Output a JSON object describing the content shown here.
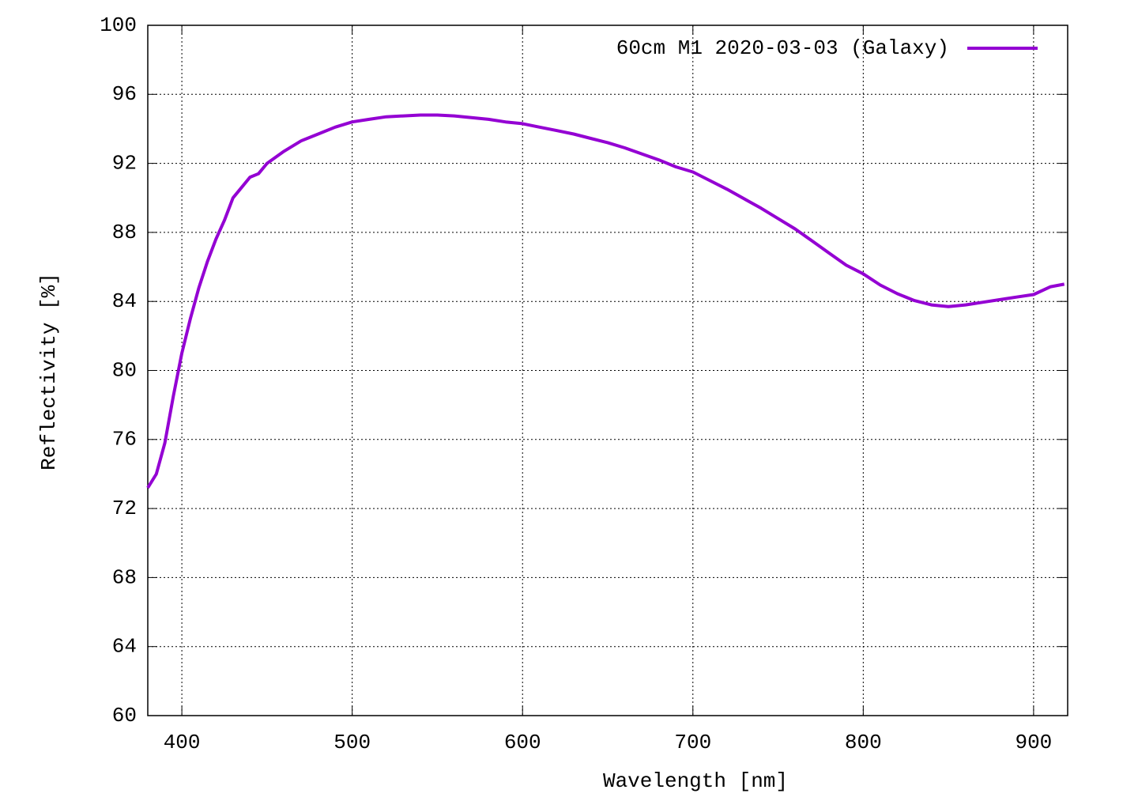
{
  "chart_data": {
    "type": "line",
    "x_label": "Wavelength [nm]",
    "y_label": "Reflectivity [%]",
    "xlim": [
      380,
      920
    ],
    "ylim": [
      60,
      100
    ],
    "xticks": [
      400,
      500,
      600,
      700,
      800,
      900
    ],
    "yticks": [
      60,
      64,
      68,
      72,
      76,
      80,
      84,
      88,
      92,
      96,
      100
    ],
    "grid": true,
    "legend": "top-right",
    "x": [
      380,
      385,
      390,
      395,
      400,
      405,
      410,
      415,
      420,
      425,
      430,
      435,
      440,
      445,
      450,
      460,
      470,
      480,
      490,
      500,
      510,
      520,
      530,
      540,
      550,
      560,
      570,
      580,
      590,
      600,
      610,
      620,
      630,
      640,
      650,
      660,
      670,
      680,
      690,
      700,
      710,
      720,
      730,
      740,
      750,
      760,
      770,
      780,
      790,
      800,
      810,
      820,
      830,
      840,
      850,
      860,
      870,
      880,
      890,
      900,
      910,
      918
    ],
    "series": [
      {
        "name": "60cm M1 2020-03-03 (Galaxy)",
        "color": "#9400d3",
        "values": [
          73.2,
          74.0,
          75.8,
          78.5,
          81.0,
          83.0,
          84.8,
          86.3,
          87.6,
          88.7,
          90.0,
          90.6,
          91.2,
          91.4,
          92.0,
          92.7,
          93.3,
          93.7,
          94.1,
          94.4,
          94.55,
          94.7,
          94.75,
          94.8,
          94.8,
          94.75,
          94.65,
          94.55,
          94.4,
          94.3,
          94.1,
          93.9,
          93.7,
          93.45,
          93.2,
          92.9,
          92.55,
          92.2,
          91.8,
          91.5,
          91.0,
          90.5,
          89.95,
          89.4,
          88.8,
          88.2,
          87.5,
          86.8,
          86.1,
          85.6,
          84.95,
          84.45,
          84.05,
          83.8,
          83.7,
          83.8,
          83.95,
          84.1,
          84.25,
          84.4,
          84.85,
          85.0
        ]
      }
    ]
  }
}
